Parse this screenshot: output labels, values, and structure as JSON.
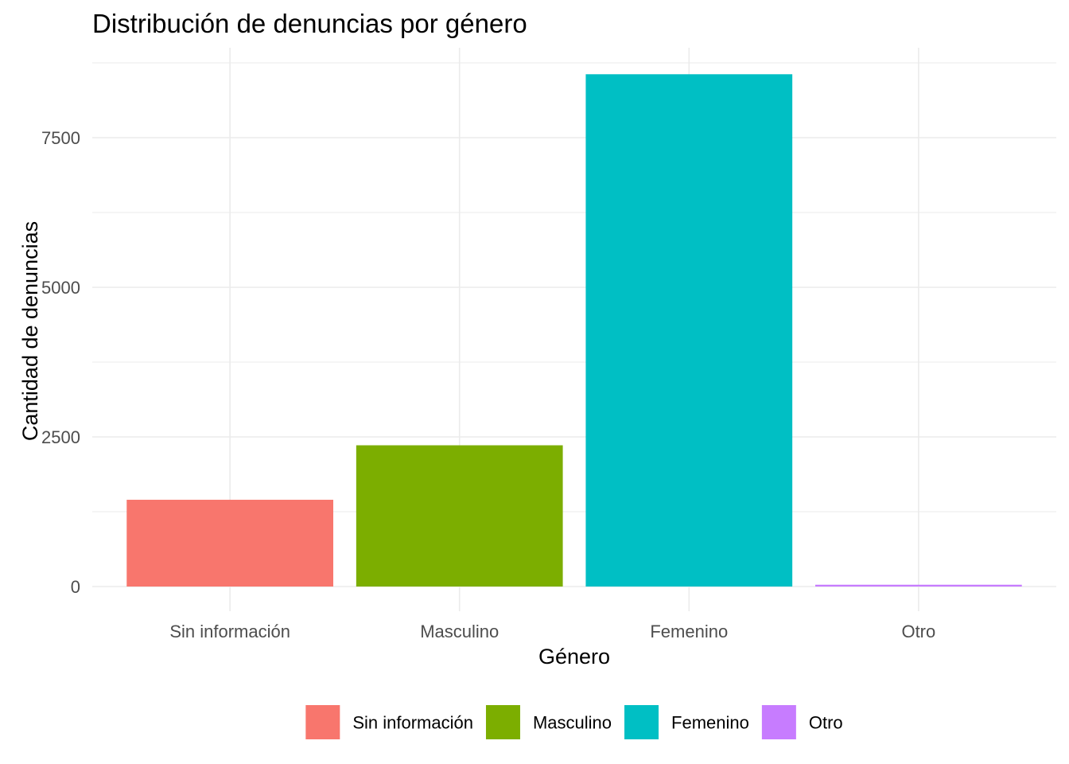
{
  "chart_data": {
    "type": "bar",
    "title": "Distribución de denuncias por género",
    "xlabel": "Género",
    "ylabel": "Cantidad de denuncias",
    "categories": [
      "Sin información",
      "Masculino",
      "Femenino",
      "Otro"
    ],
    "values": [
      1450,
      2360,
      8560,
      30
    ],
    "colors": [
      "#F8766D",
      "#7CAE00",
      "#00BFC4",
      "#C77CFF"
    ],
    "ylim": [
      0,
      8950
    ],
    "yticks": [
      0,
      2500,
      5000,
      7500
    ],
    "ytick_labels": [
      "0",
      "2500",
      "5000",
      "7500"
    ],
    "grid": true,
    "legend": {
      "position": "bottom",
      "entries": [
        "Sin información",
        "Masculino",
        "Femenino",
        "Otro"
      ]
    }
  }
}
